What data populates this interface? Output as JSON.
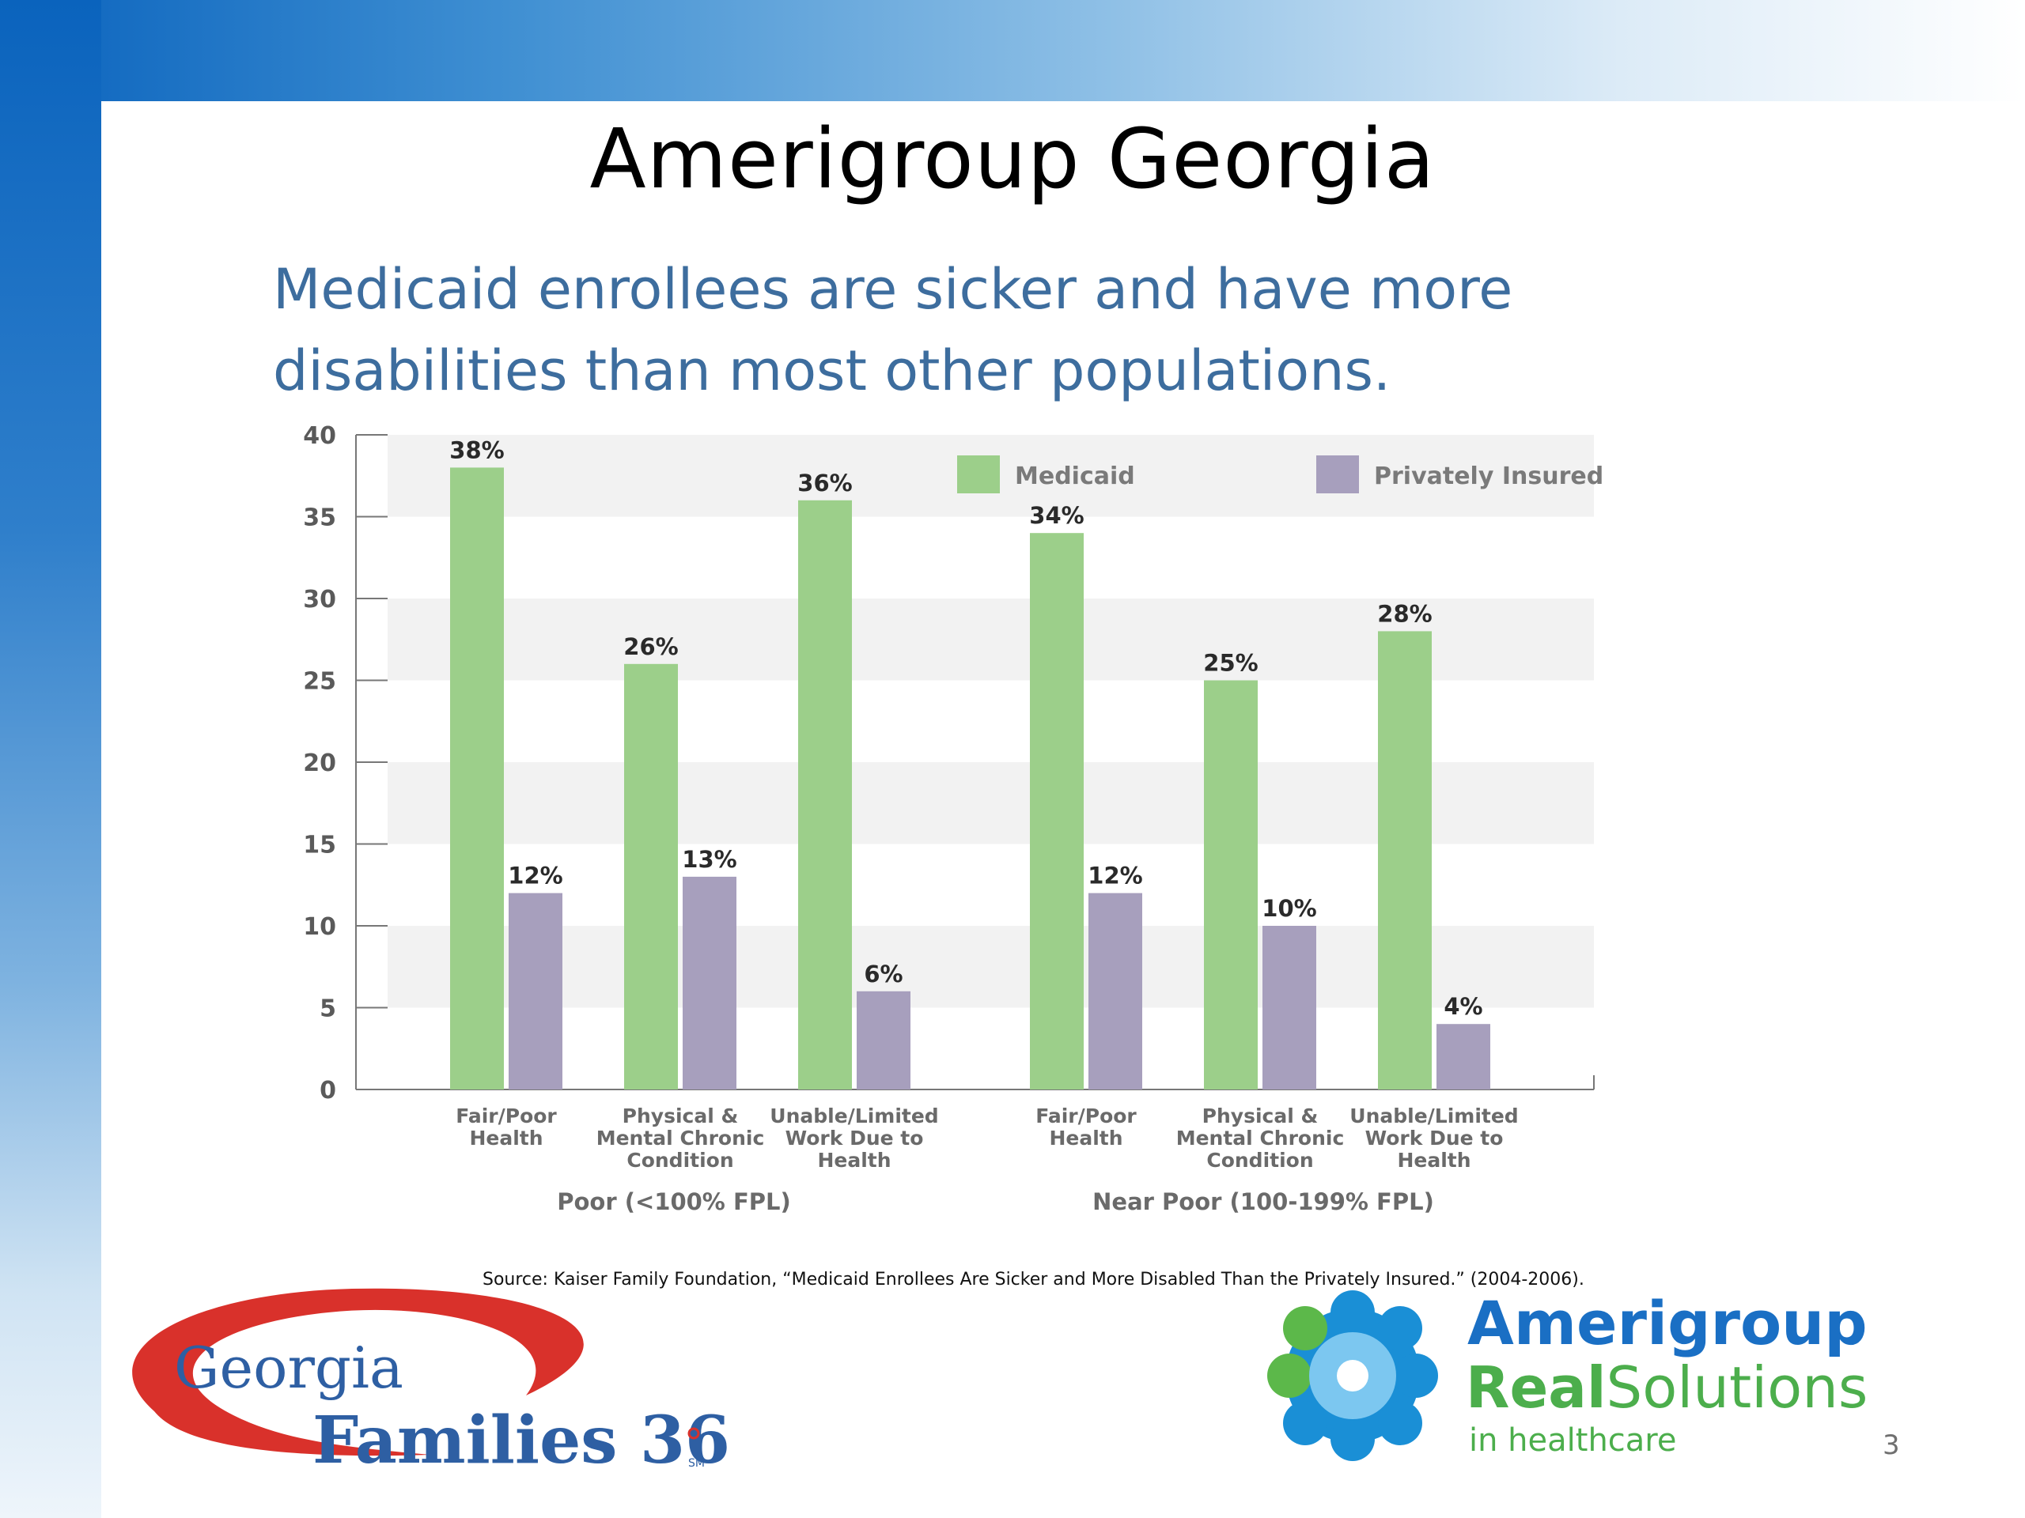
{
  "slide": {
    "title": "Amerigroup Georgia",
    "subtitle_line1": "Medicaid enrollees are sicker and have more",
    "subtitle_line2": "disabilities than most other populations.",
    "source": "Source: Kaiser Family Foundation, “Medicaid Enrollees Are Sicker and More Disabled Than the Privately Insured.” (2004-2006).",
    "page_number": "3"
  },
  "logos": {
    "left_line1": "Georgia",
    "left_line2": "Families 360",
    "left_mark": "SM",
    "right_line1": "Amerigroup",
    "right_line2a": "Real",
    "right_line2b": "Solutions",
    "right_line3": "in healthcare"
  },
  "colors": {
    "medicaid": "#9ccf8a",
    "private": "#a79fbd",
    "band": "#f2f2f2"
  },
  "chart_data": {
    "type": "bar",
    "ylim": [
      0,
      40
    ],
    "yticks": [
      0,
      5,
      10,
      15,
      20,
      25,
      30,
      35,
      40
    ],
    "groups": [
      {
        "label": "Poor (<100% FPL)",
        "categories": [
          [
            "Fair/Poor",
            "Health"
          ],
          [
            "Physical &",
            "Mental Chronic",
            "Condition"
          ],
          [
            "Unable/Limited",
            "Work Due to",
            "Health"
          ]
        ]
      },
      {
        "label": "Near Poor (100-199% FPL)",
        "categories": [
          [
            "Fair/Poor",
            "Health"
          ],
          [
            "Physical &",
            "Mental Chronic",
            "Condition"
          ],
          [
            "Unable/Limited",
            "Work Due to",
            "Health"
          ]
        ]
      }
    ],
    "series": [
      {
        "name": "Medicaid",
        "values": [
          38,
          26,
          36,
          34,
          25,
          28
        ],
        "labels": [
          "38%",
          "26%",
          "36%",
          "34%",
          "25%",
          "28%"
        ]
      },
      {
        "name": "Privately Insured",
        "values": [
          12,
          13,
          6,
          12,
          10,
          4
        ],
        "labels": [
          "12%",
          "13%",
          "6%",
          "12%",
          "10%",
          "4%"
        ]
      }
    ],
    "grid": "alternating bands",
    "legend": "top-right"
  }
}
